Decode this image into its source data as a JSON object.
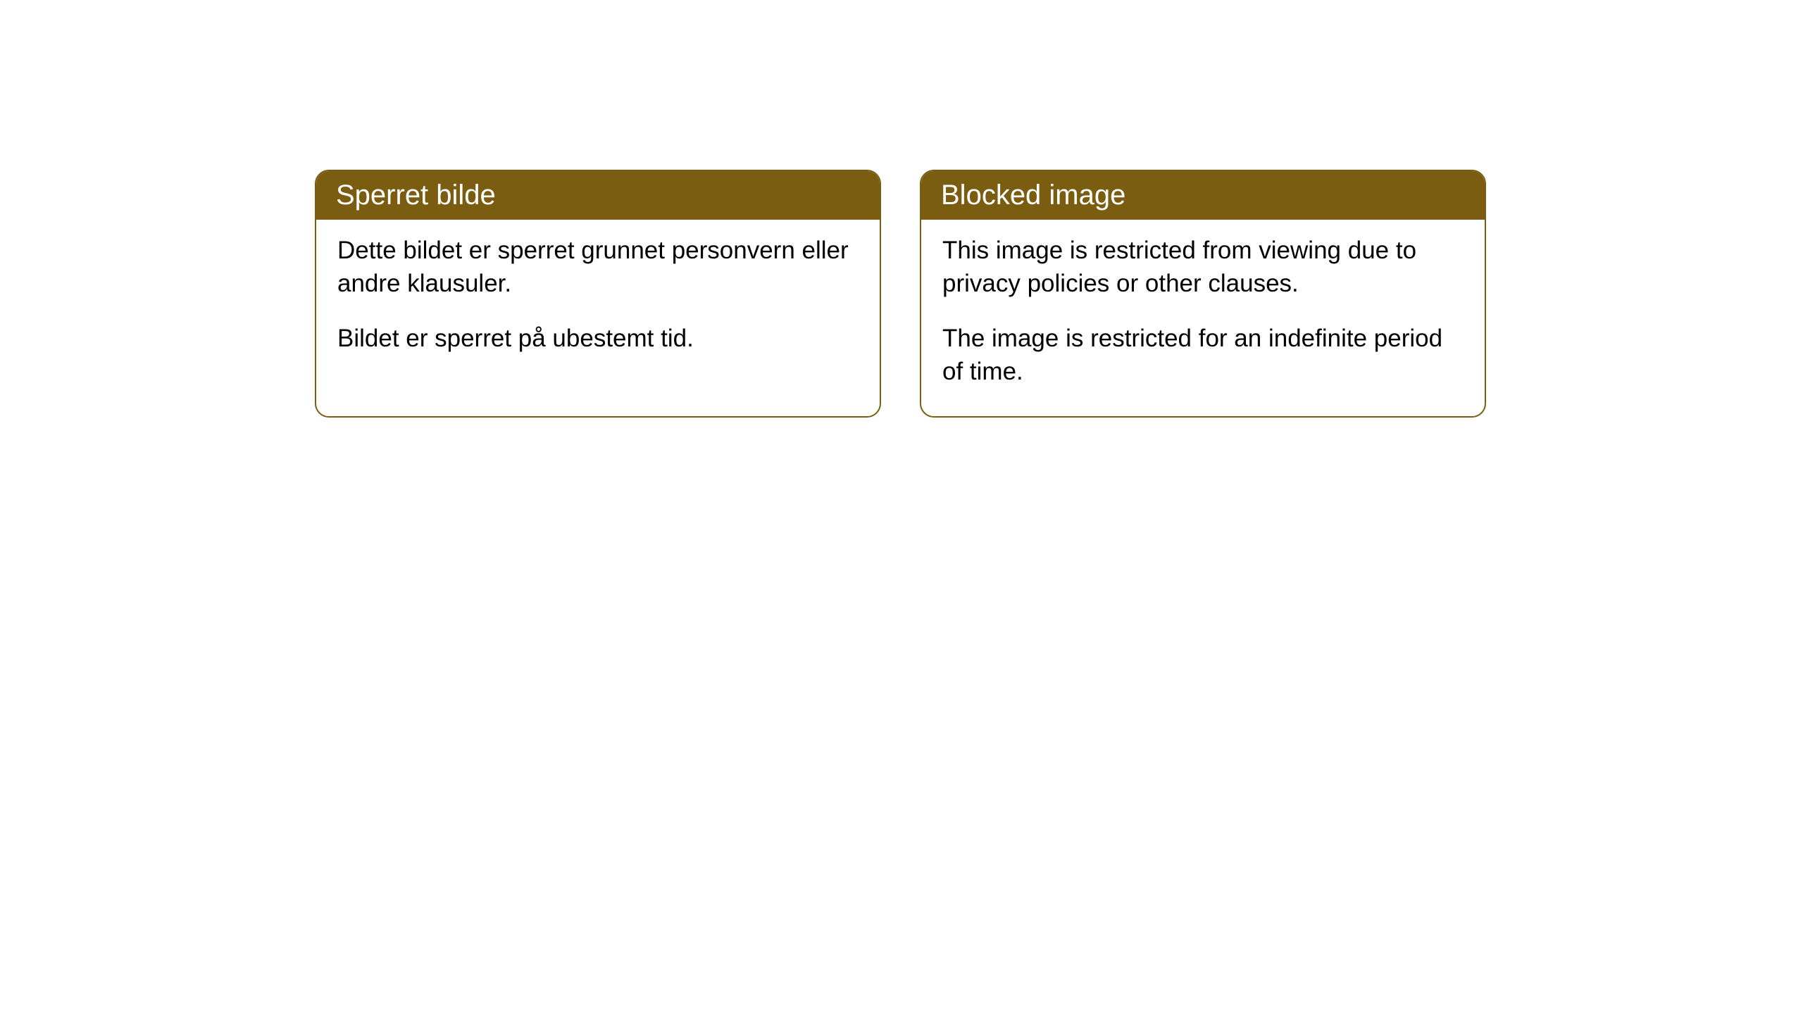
{
  "cards": [
    {
      "title": "Sperret bilde",
      "paragraph1": "Dette bildet er sperret grunnet personvern eller andre klausuler.",
      "paragraph2": "Bildet er sperret på ubestemt tid."
    },
    {
      "title": "Blocked image",
      "paragraph1": "This image is restricted from viewing due to privacy policies or other clauses.",
      "paragraph2": "The image is restricted for an indefinite period of time."
    }
  ],
  "styling": {
    "header_background": "#7a5d11",
    "header_text_color": "#ffffff",
    "border_color": "#7a5d11",
    "body_background": "#ffffff",
    "body_text_color": "#000000",
    "border_radius": 20,
    "title_fontsize": 40,
    "body_fontsize": 35
  }
}
